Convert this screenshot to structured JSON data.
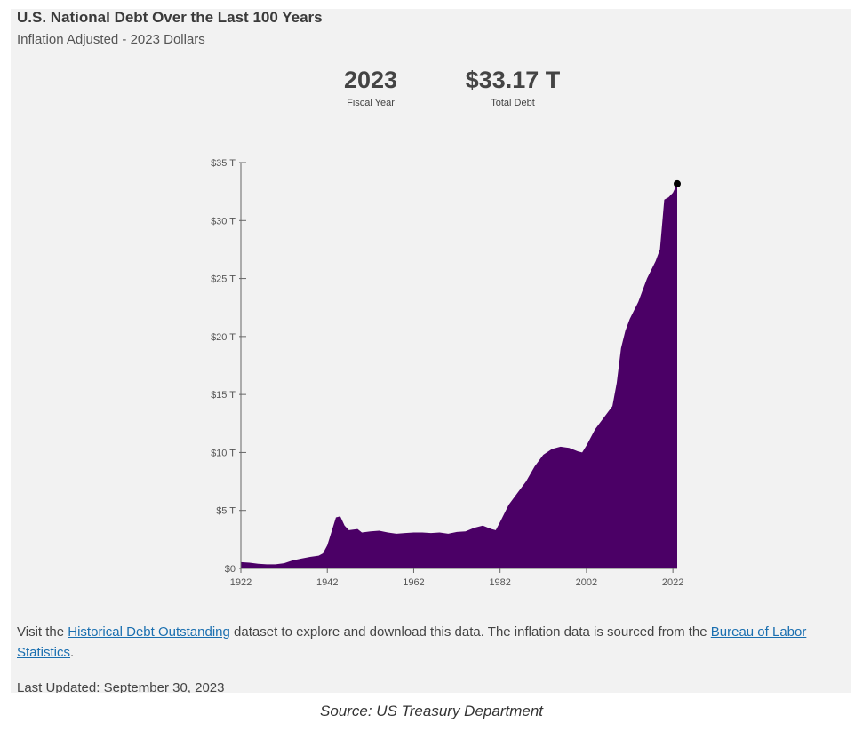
{
  "header": {
    "title": "U.S. National Debt Over the Last 100 Years",
    "subtitle": "Inflation Adjusted - 2023 Dollars"
  },
  "stats": {
    "fiscal_year_value": "2023",
    "fiscal_year_label": "Fiscal Year",
    "total_debt_value": "$33.17 T",
    "total_debt_label": "Total Debt"
  },
  "chart_data": {
    "type": "area",
    "title": "U.S. National Debt Over the Last 100 Years",
    "subtitle": "Inflation Adjusted - 2023 Dollars",
    "xlabel": "",
    "ylabel": "",
    "xlim": [
      1922,
      2023
    ],
    "ylim": [
      0,
      35
    ],
    "x_ticks": [
      "1922",
      "1942",
      "1962",
      "1982",
      "2002",
      "2022"
    ],
    "y_ticks": [
      "$0",
      "$5 T",
      "$10 T",
      "$15 T",
      "$20 T",
      "$25 T",
      "$30 T",
      "$35 T"
    ],
    "color": "#4b0066",
    "grid": false,
    "highlight_point": {
      "x": 2023,
      "y": 33.17
    },
    "x": [
      1922,
      1924,
      1926,
      1928,
      1930,
      1932,
      1934,
      1936,
      1938,
      1940,
      1941,
      1942,
      1943,
      1944,
      1945,
      1946,
      1947,
      1948,
      1949,
      1950,
      1952,
      1954,
      1956,
      1958,
      1960,
      1962,
      1964,
      1966,
      1968,
      1970,
      1972,
      1974,
      1976,
      1978,
      1980,
      1981,
      1982,
      1984,
      1986,
      1988,
      1990,
      1992,
      1994,
      1996,
      1998,
      2000,
      2001,
      2002,
      2004,
      2006,
      2008,
      2009,
      2010,
      2011,
      2012,
      2014,
      2016,
      2018,
      2019,
      2020,
      2021,
      2022,
      2023
    ],
    "values": [
      0.55,
      0.5,
      0.4,
      0.35,
      0.35,
      0.45,
      0.7,
      0.85,
      1.0,
      1.1,
      1.3,
      2.0,
      3.2,
      4.4,
      4.5,
      3.7,
      3.3,
      3.35,
      3.4,
      3.1,
      3.2,
      3.25,
      3.1,
      3.0,
      3.05,
      3.1,
      3.1,
      3.05,
      3.1,
      3.0,
      3.15,
      3.2,
      3.5,
      3.7,
      3.4,
      3.3,
      4.0,
      5.5,
      6.5,
      7.5,
      8.8,
      9.8,
      10.3,
      10.5,
      10.4,
      10.1,
      10.0,
      10.6,
      12.0,
      13.0,
      14.0,
      16.0,
      19.0,
      20.5,
      21.5,
      23.0,
      25.0,
      26.5,
      27.5,
      31.8,
      32.0,
      32.4,
      33.17
    ]
  },
  "footer": {
    "text_before_link1": "Visit the ",
    "link1": "Historical Debt Outstanding",
    "text_between_links": " dataset to explore and download this data. The inflation data is sourced from the ",
    "link2": "Bureau of Labor Statistics",
    "text_after_link2": ".",
    "last_updated": "Last Updated: September 30, 2023"
  },
  "caption": "Source: US Treasury Department"
}
